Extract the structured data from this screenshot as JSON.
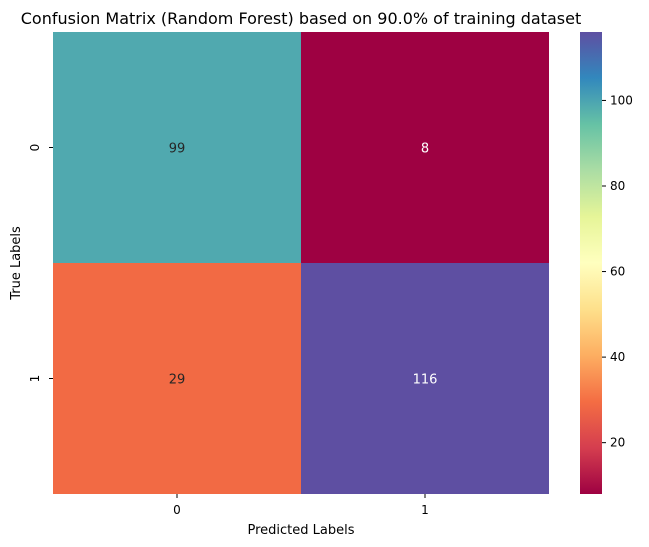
{
  "chart_data": {
    "type": "heatmap",
    "title": "Confusion Matrix (Random Forest) based on 90.0% of training dataset",
    "xlabel": "Predicted Labels",
    "ylabel": "True Labels",
    "x_categories": [
      "0",
      "1"
    ],
    "y_categories": [
      "0",
      "1"
    ],
    "values": [
      [
        99,
        8
      ],
      [
        29,
        116
      ]
    ],
    "colormap": "Spectral",
    "vmin": 8,
    "vmax": 116,
    "colorbar_ticks": [
      20,
      40,
      60,
      80,
      100
    ],
    "colorbar_tick_labels": [
      "20",
      "40",
      "60",
      "80",
      "100"
    ]
  }
}
